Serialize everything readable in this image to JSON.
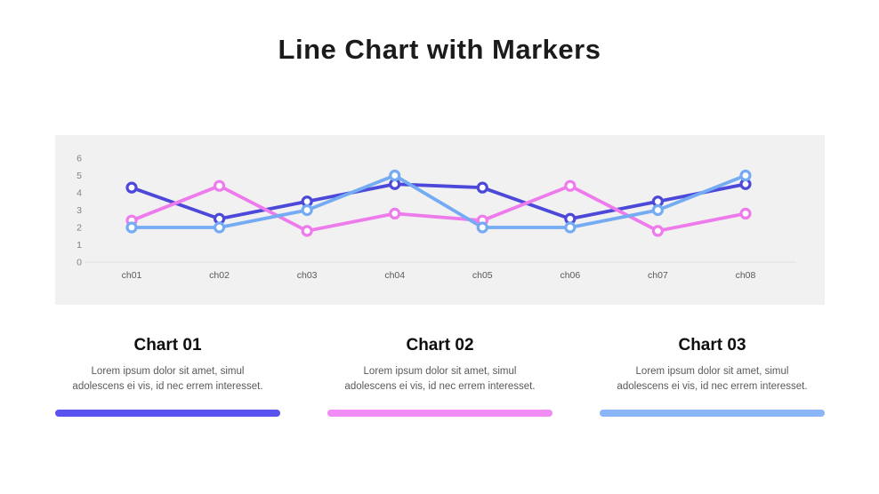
{
  "title": "Line Chart with Markers",
  "chart_data": {
    "type": "line",
    "title": "",
    "categories": [
      "ch01",
      "ch02",
      "ch03",
      "ch04",
      "ch05",
      "ch06",
      "ch07",
      "ch08"
    ],
    "series": [
      {
        "name": "Chart 01",
        "color": "#4C48D9",
        "values": [
          4.3,
          2.5,
          3.5,
          4.5,
          4.3,
          2.5,
          3.5,
          4.5
        ]
      },
      {
        "name": "Chart 02",
        "color": "#EE7BEC",
        "values": [
          2.4,
          4.4,
          1.8,
          2.8,
          2.4,
          4.4,
          1.8,
          2.8
        ]
      },
      {
        "name": "Chart 03",
        "color": "#74ABF3",
        "values": [
          2.0,
          2.0,
          3.0,
          5.0,
          2.0,
          2.0,
          3.0,
          5.0
        ]
      }
    ],
    "xlabel": "",
    "ylabel": "",
    "ylim": [
      0,
      6
    ],
    "yticks": [
      0,
      1,
      2,
      3,
      4,
      5,
      6
    ],
    "grid": "baseline-only",
    "marker_style": "open-circle",
    "plot_background": "#F1F1F2",
    "axis_line_color": "#E3E3E4",
    "tick_label_color": "#808080",
    "category_label_color": "#595959",
    "legend_position": "below-as-cards"
  },
  "cards": [
    {
      "title": "Chart 01",
      "description": "Lorem ipsum dolor sit amet, simul adolescens ei vis, id nec errem interesset.",
      "bar_color": "#5A52EE"
    },
    {
      "title": "Chart 02",
      "description": "Lorem ipsum dolor sit amet, simul adolescens ei vis, id nec errem interesset.",
      "bar_color": "#F08CF3"
    },
    {
      "title": "Chart 03",
      "description": "Lorem ipsum dolor sit amet, simul adolescens ei vis, id nec errem interesset.",
      "bar_color": "#8AB6F7"
    }
  ]
}
